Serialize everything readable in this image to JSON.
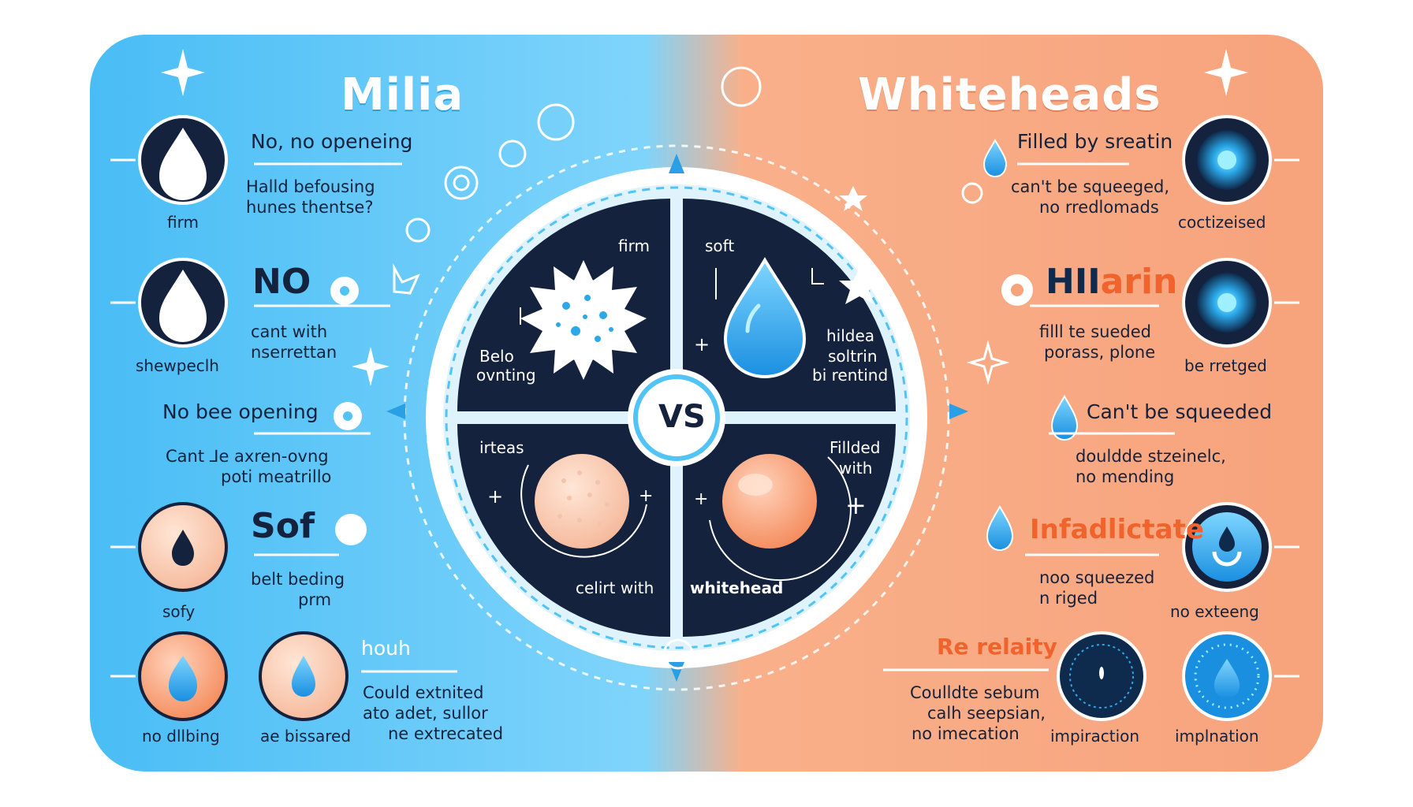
{
  "titles": {
    "left": "Milia",
    "right": "Whiteheads"
  },
  "center": {
    "vs": "VS",
    "q1": {
      "top": "firm",
      "bottom1": "Belo",
      "bottom2": "ovnting"
    },
    "q2": {
      "top": "soft",
      "l1": "hildea",
      "l2": "soltrin",
      "l3": "bi rentind"
    },
    "q3": {
      "top": "irteas",
      "bottom": "celirt with"
    },
    "q4": {
      "l1": "Fillded",
      "l2": "with",
      "bottom": "whitehead"
    }
  },
  "left": {
    "r1": {
      "head": "No, no openeing",
      "l1": "Halld befousing",
      "l2": "hunes thentse?",
      "caption": "firm"
    },
    "r2": {
      "head": "NO",
      "l1": "cant with",
      "l2": "nserrettan",
      "caption": "shewpeclh"
    },
    "r3": {
      "head": "No bee opening",
      "l1": "Cant ⅃e axren-ovng",
      "l2": "poti meatrillo"
    },
    "r4": {
      "head": "Sof",
      "l1": "belt beding",
      "l2": "prm",
      "caption": "sofy"
    },
    "r5": {
      "head": "houh",
      "l1": "Could extnited",
      "l2": "ato adet, sullor",
      "l3": "ne extrecated",
      "caption1": "no dllbing",
      "caption2": "ae bissared"
    }
  },
  "right": {
    "r1": {
      "head": "Filled by sreatin",
      "l1": "can't be squeeged,",
      "l2": "no rredlomads",
      "caption": "coctizeised"
    },
    "r2": {
      "head_a": "HII",
      "head_b": "arin",
      "l1": "filll te sueded",
      "l2": "porass, plone",
      "caption": "be rretged"
    },
    "r3": {
      "head": "Can't be squeeded",
      "l1": "douldde stzeinelc,",
      "l2": "no mending"
    },
    "r4": {
      "head": "Infadlictate",
      "l1": "noo squeezed",
      "l2": "n riged",
      "caption": "no exteeng"
    },
    "r5": {
      "head": "Re relaity",
      "l1": "Coulldte sebum",
      "l2": "calh seepsian,",
      "l3": "no imecation",
      "caption1": "impiraction",
      "caption2": "implnation"
    }
  },
  "colors": {
    "left_bg": "#49bdf5",
    "right_bg": "#f7a37c",
    "navy": "#14223d",
    "accent_orange": "#f0632d"
  }
}
